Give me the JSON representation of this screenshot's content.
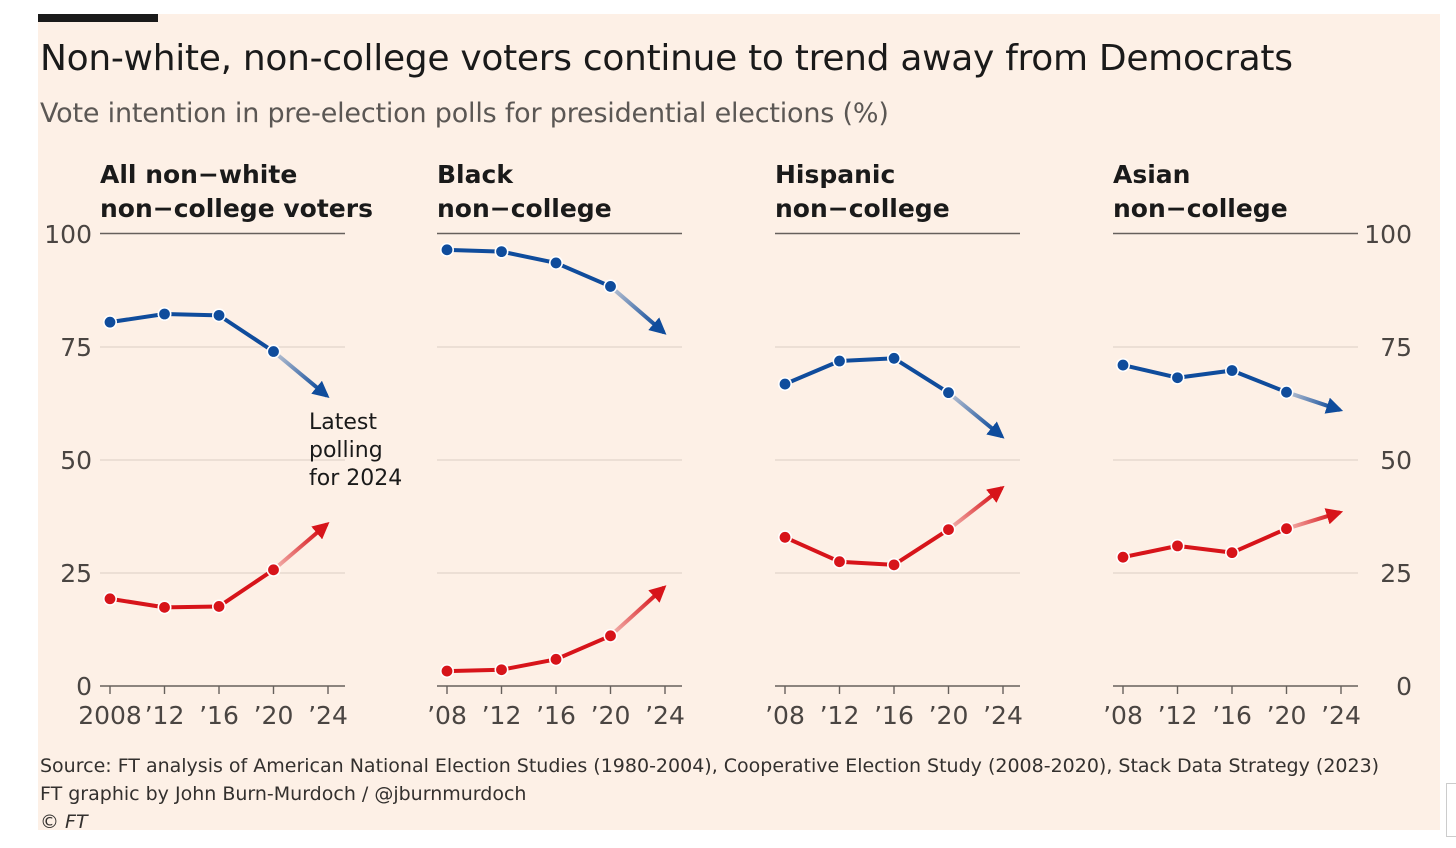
{
  "header": {
    "title": "Non-white, non-college voters continue to trend away from Democrats",
    "subtitle": "Vote intention in pre-election polls for presidential elections (%)"
  },
  "annotation": [
    "Latest",
    "polling",
    "for 2024"
  ],
  "footer": {
    "source": "Source: FT analysis of American National Election Studies (1980-2004), Cooperative Election Study (2008-2020), Stack Data Strategy (2023)",
    "credit": "FT graphic by John Burn-Murdoch / @jburnmurdoch",
    "copyright": "© FT"
  },
  "colors": {
    "background": "#fdf0e6",
    "democrat": "#0f4c9c",
    "republican": "#d7141a",
    "grid": "#e6d9cf",
    "axis": "#66605c"
  },
  "chart_data": {
    "type": "line",
    "ylim": [
      0,
      100
    ],
    "yticks": [
      0,
      25,
      50,
      75,
      100
    ],
    "x": [
      2008,
      2012,
      2016,
      2020,
      2024
    ],
    "panels": [
      {
        "title": [
          "All non−white",
          "non−college voters"
        ],
        "xtick_labels": [
          "2008",
          "’12",
          "’16",
          "’20",
          "’24"
        ],
        "series": [
          {
            "party": "democrat",
            "values": [
              80.5,
              82.3,
              82,
              74
            ],
            "latest_2024": 64
          },
          {
            "party": "republican",
            "values": [
              19.3,
              17.4,
              17.6,
              25.7
            ],
            "latest_2024": 36
          }
        ]
      },
      {
        "title": [
          "Black",
          "non−college"
        ],
        "xtick_labels": [
          "’08",
          "’12",
          "’16",
          "’20",
          "’24"
        ],
        "series": [
          {
            "party": "democrat",
            "values": [
              96.5,
              96.1,
              93.6,
              88.4
            ],
            "latest_2024": 78
          },
          {
            "party": "republican",
            "values": [
              3.3,
              3.6,
              5.9,
              11.1
            ],
            "latest_2024": 22
          }
        ]
      },
      {
        "title": [
          "Hispanic",
          "non−college"
        ],
        "xtick_labels": [
          "’08",
          "’12",
          "’16",
          "’20",
          "’24"
        ],
        "series": [
          {
            "party": "democrat",
            "values": [
              66.8,
              71.9,
              72.5,
              64.9
            ],
            "latest_2024": 55
          },
          {
            "party": "republican",
            "values": [
              32.9,
              27.5,
              26.8,
              34.6
            ],
            "latest_2024": 44
          }
        ]
      },
      {
        "title": [
          "Asian",
          "non−college"
        ],
        "xtick_labels": [
          "’08",
          "’12",
          "’16",
          "’20",
          "’24"
        ],
        "series": [
          {
            "party": "democrat",
            "values": [
              71,
              68.2,
              69.8,
              65
            ],
            "latest_2024": 61
          },
          {
            "party": "republican",
            "values": [
              28.5,
              31,
              29.5,
              34.8
            ],
            "latest_2024": 38.5
          }
        ]
      }
    ]
  }
}
